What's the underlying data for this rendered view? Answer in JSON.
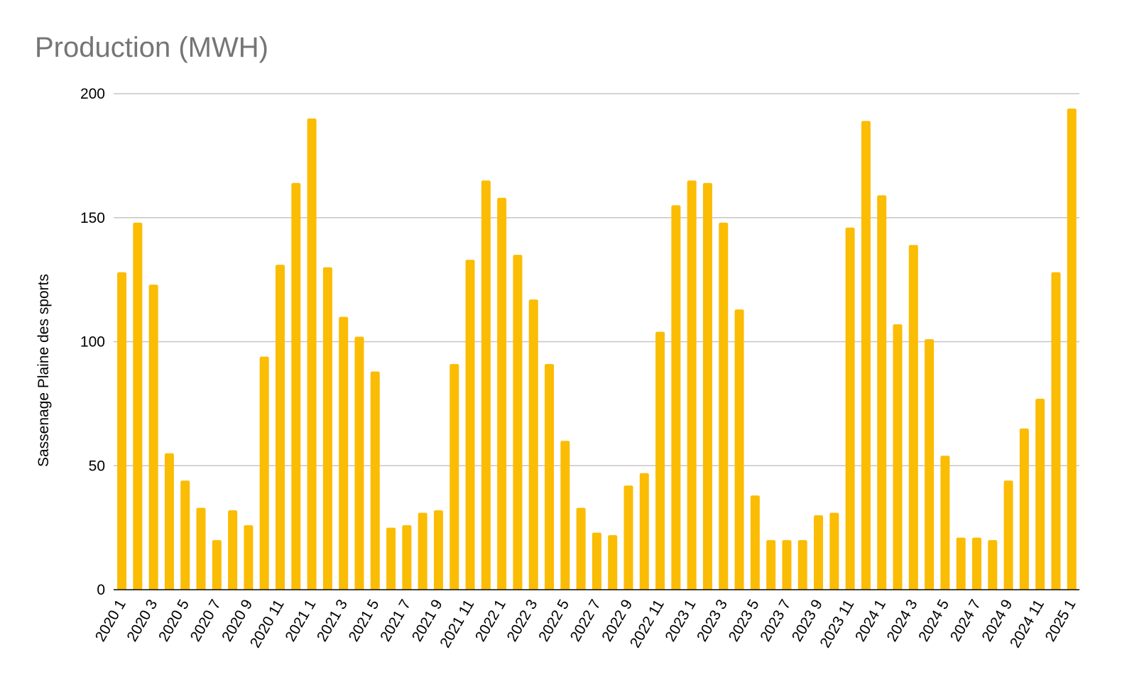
{
  "chart_data": {
    "type": "bar",
    "title": "Production (MWH)",
    "xlabel": "",
    "ylabel": "Sassenage Plaine des sports",
    "ylim": [
      0,
      200
    ],
    "yticks": [
      "0",
      "50",
      "100",
      "150",
      "200"
    ],
    "grid": true,
    "legend": "none",
    "bar_color": "#FBBC04",
    "categories": [
      "2020 1",
      "2020 2",
      "2020 3",
      "2020 4",
      "2020 5",
      "2020 6",
      "2020 7",
      "2020 8",
      "2020 9",
      "2020 10",
      "2020 11",
      "2020 12",
      "2021 1",
      "2021 2",
      "2021 3",
      "2021 4",
      "2021 5",
      "2021 6",
      "2021 7",
      "2021 8",
      "2021 9",
      "2021 10",
      "2021 11",
      "2021 12",
      "2022 1",
      "2022 2",
      "2022 3",
      "2022 4",
      "2022 5",
      "2022 6",
      "2022 7",
      "2022 8",
      "2022 9",
      "2022 10",
      "2022 11",
      "2022 12",
      "2023 1",
      "2023 2",
      "2023 3",
      "2023 4",
      "2023 5",
      "2023 6",
      "2023 7",
      "2023 8",
      "2023 9",
      "2023 10",
      "2023 11",
      "2023 12",
      "2024 1",
      "2024 2",
      "2024 3",
      "2024 4",
      "2024 5",
      "2024 6",
      "2024 7",
      "2024 8",
      "2024 9",
      "2024 10",
      "2024 11",
      "2024 12",
      "2025 1"
    ],
    "xtick_labels": [
      "2020 1",
      "2020 3",
      "2020 5",
      "2020 7",
      "2020 9",
      "2020 11",
      "2021 1",
      "2021 3",
      "2021 5",
      "2021 7",
      "2021 9",
      "2021 11",
      "2022 1",
      "2022 3",
      "2022 5",
      "2022 7",
      "2022 9",
      "2022 11",
      "2023 1",
      "2023 3",
      "2023 5",
      "2023 7",
      "2023 9",
      "2023 11",
      "2024 1",
      "2024 3",
      "2024 5",
      "2024 7",
      "2024 9",
      "2024 11",
      "2025 1"
    ],
    "values": [
      128,
      148,
      123,
      55,
      44,
      33,
      20,
      32,
      26,
      94,
      131,
      164,
      190,
      130,
      110,
      102,
      88,
      25,
      26,
      31,
      32,
      91,
      133,
      165,
      158,
      135,
      117,
      91,
      60,
      33,
      23,
      22,
      42,
      47,
      104,
      155,
      165,
      164,
      148,
      113,
      38,
      20,
      20,
      20,
      30,
      31,
      146,
      189,
      159,
      107,
      139,
      101,
      54,
      21,
      21,
      20,
      44,
      65,
      77,
      128,
      194
    ]
  }
}
